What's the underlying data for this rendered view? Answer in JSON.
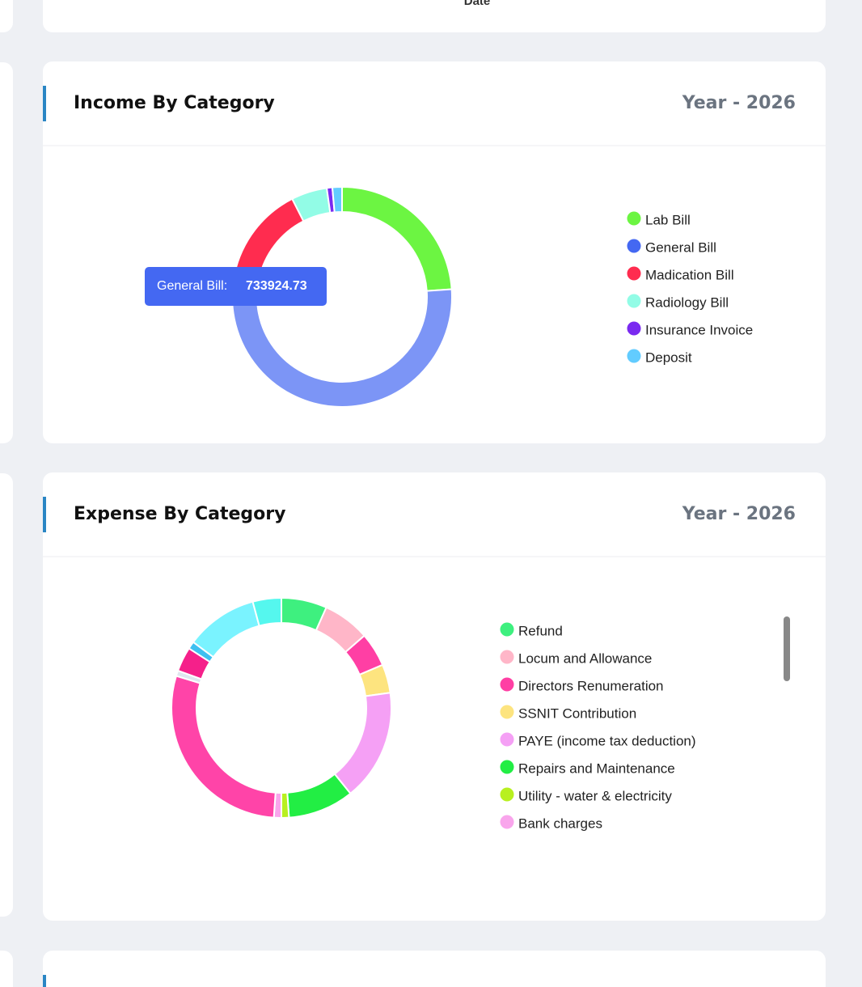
{
  "top_card": {
    "axis_label": "Date"
  },
  "chart_data": [
    {
      "type": "doughnut",
      "title": "Income By Category",
      "subtitle": "Year - 2026",
      "categories": [
        "Lab Bill",
        "General Bill",
        "Madication Bill",
        "Radiology Bill",
        "Insurance Invoice",
        "Deposit"
      ],
      "values": [
        322000,
        733924.73,
        191000,
        71000,
        11000,
        19000
      ],
      "colors": [
        "#6cf542",
        "#4468f2",
        "#ff2c4f",
        "#92fce6",
        "#7a2af0",
        "#62ccff"
      ],
      "tooltip": {
        "label": "General Bill:"
      }
    },
    {
      "type": "doughnut",
      "title": "Expense By Category",
      "subtitle": "Year - 2026",
      "categories": [
        "Refund",
        "Locum and Allowance",
        "Directors Renumeration",
        "SSNIT Contribution",
        "PAYE (income tax deduction)",
        "Repairs and Maintenance",
        "Utility - water & electricity",
        "Bank charges",
        null,
        null,
        null,
        null,
        null,
        null
      ],
      "values": [
        6.7,
        6.9,
        5.0,
        4.2,
        16.4,
        9.7,
        1.1,
        1.1,
        28.6,
        0.8,
        3.6,
        1.1,
        10.6,
        4.2
      ],
      "colors": [
        "#3ef07f",
        "#ffb6c8",
        "#ff3fa4",
        "#fde47f",
        "#f5a0f5",
        "#22ee44",
        "#b8f020",
        "#f9a5ec",
        "#ff44a8",
        "#dfe6ef",
        "#f5208a",
        "#3ec0f0",
        "#7af3ff",
        "#55f7ee"
      ]
    }
  ]
}
